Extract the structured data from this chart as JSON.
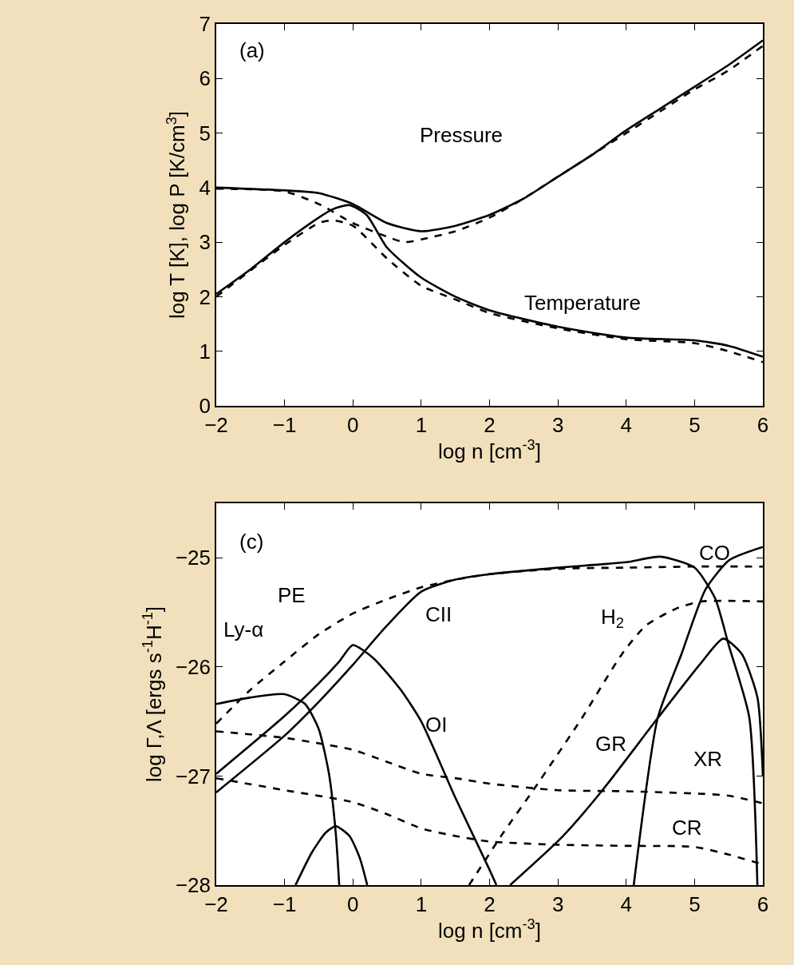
{
  "chart_data": [
    {
      "type": "line",
      "xlabel": "log n [cm$^{-3}$]",
      "ylabel": "log T [K], log P [K/cm$^{3}$]",
      "xlim": [
        -2,
        6
      ],
      "ylim": [
        0,
        7
      ],
      "xticks": [
        -2,
        -1,
        0,
        1,
        2,
        3,
        4,
        5,
        6
      ],
      "yticks": [
        0,
        1,
        2,
        3,
        4,
        5,
        6,
        7
      ],
      "annotations": [
        "(a)",
        "Pressure",
        "Temperature"
      ],
      "series": [
        {
          "color": "#000000",
          "line_style": "solid",
          "x": [
            -2,
            -1,
            -0.5,
            0,
            0.5,
            1,
            1.5,
            2,
            2.5,
            3,
            3.5,
            4,
            4.5,
            5,
            5.5,
            6
          ],
          "values": [
            4.0,
            3.95,
            3.9,
            3.7,
            3.35,
            3.2,
            3.3,
            3.5,
            3.8,
            4.2,
            4.6,
            5.05,
            5.45,
            5.85,
            6.25,
            6.7
          ]
        },
        {
          "color": "#000000",
          "line_style": "dashed",
          "x": [
            -2,
            -1,
            -0.5,
            0,
            0.5,
            0.75,
            1,
            1.5,
            2,
            2.5,
            3,
            3.5,
            4,
            4.5,
            5,
            5.5,
            6
          ],
          "values": [
            3.98,
            3.93,
            3.7,
            3.35,
            3.1,
            3.0,
            3.05,
            3.2,
            3.45,
            3.8,
            4.2,
            4.6,
            5.0,
            5.4,
            5.8,
            6.15,
            6.6
          ]
        },
        {
          "color": "#000000",
          "line_style": "solid",
          "x": [
            -2,
            -1.5,
            -1,
            -0.5,
            -0.3,
            -0.05,
            0.2,
            0.5,
            1,
            1.5,
            2,
            3,
            4,
            5,
            5.5,
            6
          ],
          "values": [
            2.05,
            2.5,
            3.0,
            3.45,
            3.6,
            3.68,
            3.5,
            2.9,
            2.35,
            2.0,
            1.75,
            1.45,
            1.25,
            1.2,
            1.1,
            0.9
          ]
        },
        {
          "color": "#000000",
          "line_style": "dashed",
          "x": [
            -2,
            -1,
            -0.5,
            -0.3,
            0,
            0.5,
            1,
            1.5,
            2,
            3,
            4,
            5,
            5.5,
            6
          ],
          "values": [
            2.0,
            2.95,
            3.35,
            3.4,
            3.3,
            2.7,
            2.2,
            1.95,
            1.7,
            1.42,
            1.22,
            1.15,
            1.0,
            0.8
          ]
        }
      ]
    },
    {
      "type": "line",
      "xlabel": "log n [cm$^{-3}$]",
      "ylabel": "log Γ,Λ [ergs s$^{-1}$H$^{-1}$]",
      "xlim": [
        -2,
        6
      ],
      "ylim": [
        -28,
        -24.5
      ],
      "xticks": [
        -2,
        -1,
        0,
        1,
        2,
        3,
        4,
        5,
        6
      ],
      "yticks": [
        -25,
        -26,
        -27,
        -28
      ],
      "annotations": [
        "(c)",
        "Ly-α",
        "PE",
        "CII",
        "OI",
        "H$_{2}$",
        "GR",
        "XR",
        "CR",
        "CO"
      ],
      "series": [
        {
          "color": "#000000",
          "line_style": "solid",
          "x": [
            -2,
            -1,
            -0.5,
            0,
            0.5,
            1,
            1.5,
            2,
            3,
            4,
            4.5,
            5,
            5.3,
            5.5,
            5.8,
            5.92
          ],
          "values": [
            -27.15,
            -26.63,
            -26.32,
            -25.98,
            -25.62,
            -25.31,
            -25.2,
            -25.15,
            -25.09,
            -25.04,
            -24.99,
            -25.09,
            -25.37,
            -25.8,
            -26.46,
            -28.0
          ]
        },
        {
          "color": "#000000",
          "line_style": "solid",
          "x": [
            -2,
            -1,
            -0.5,
            -0.2,
            0,
            0.3,
            0.7,
            1,
            1.5,
            2,
            2.1
          ],
          "values": [
            -26.98,
            -26.45,
            -26.15,
            -25.95,
            -25.8,
            -25.92,
            -26.21,
            -26.5,
            -27.2,
            -27.86,
            -28.0
          ]
        },
        {
          "color": "#000000",
          "line_style": "solid",
          "x": [
            -2,
            -1.5,
            -1,
            -0.7,
            -0.5,
            -0.35,
            -0.25,
            -0.2
          ],
          "values": [
            -26.34,
            -26.28,
            -26.25,
            -26.34,
            -26.57,
            -26.98,
            -27.53,
            -28.0
          ]
        },
        {
          "color": "#000000",
          "line_style": "solid",
          "x": [
            -0.84,
            -0.6,
            -0.4,
            -0.25,
            -0.05,
            0.1,
            0.21
          ],
          "values": [
            -28.0,
            -27.7,
            -27.52,
            -27.46,
            -27.55,
            -27.75,
            -28.0
          ]
        },
        {
          "color": "#000000",
          "line_style": "dashed",
          "x": [
            -2,
            -1.5,
            -1,
            -0.5,
            0,
            0.5,
            1,
            1.5,
            2,
            3,
            4,
            5,
            6
          ],
          "values": [
            -26.52,
            -26.21,
            -25.95,
            -25.7,
            -25.51,
            -25.38,
            -25.27,
            -25.2,
            -25.15,
            -25.1,
            -25.09,
            -25.08,
            -25.08
          ]
        },
        {
          "color": "#000000",
          "line_style": "dashed",
          "x": [
            -2,
            -1,
            -0.5,
            0,
            0.5,
            1,
            1.5,
            2,
            3,
            4,
            5,
            5.5,
            6
          ],
          "values": [
            -26.59,
            -26.65,
            -26.7,
            -26.76,
            -26.87,
            -26.98,
            -27.02,
            -27.07,
            -27.13,
            -27.14,
            -27.16,
            -27.18,
            -27.25
          ]
        },
        {
          "color": "#000000",
          "line_style": "dashed",
          "x": [
            -2,
            -1,
            0,
            0.5,
            1,
            1.5,
            2,
            3,
            4,
            5,
            5.5,
            6
          ],
          "values": [
            -27.02,
            -27.13,
            -27.24,
            -27.35,
            -27.48,
            -27.55,
            -27.6,
            -27.63,
            -27.64,
            -27.65,
            -27.72,
            -27.81
          ]
        },
        {
          "color": "#000000",
          "line_style": "dashed",
          "x": [
            1.7,
            2.19,
            2.65,
            3.35,
            3.94,
            4.29,
            4.75,
            5.1,
            6
          ],
          "values": [
            -28.0,
            -27.53,
            -27.12,
            -26.47,
            -25.88,
            -25.62,
            -25.46,
            -25.4,
            -25.4
          ]
        },
        {
          "color": "#000000",
          "line_style": "solid",
          "x": [
            2.3,
            3.06,
            3.64,
            4.46,
            5.1,
            5.42,
            5.69,
            5.92,
            6
          ],
          "values": [
            -28.0,
            -27.56,
            -27.14,
            -26.47,
            -25.96,
            -25.74,
            -25.88,
            -26.28,
            -27.0
          ]
        },
        {
          "color": "#000000",
          "line_style": "solid",
          "x": [
            4.11,
            4.46,
            4.81,
            5.16,
            5.51,
            6
          ],
          "values": [
            -28.0,
            -26.47,
            -25.88,
            -25.29,
            -25.02,
            -24.9
          ]
        }
      ]
    }
  ]
}
